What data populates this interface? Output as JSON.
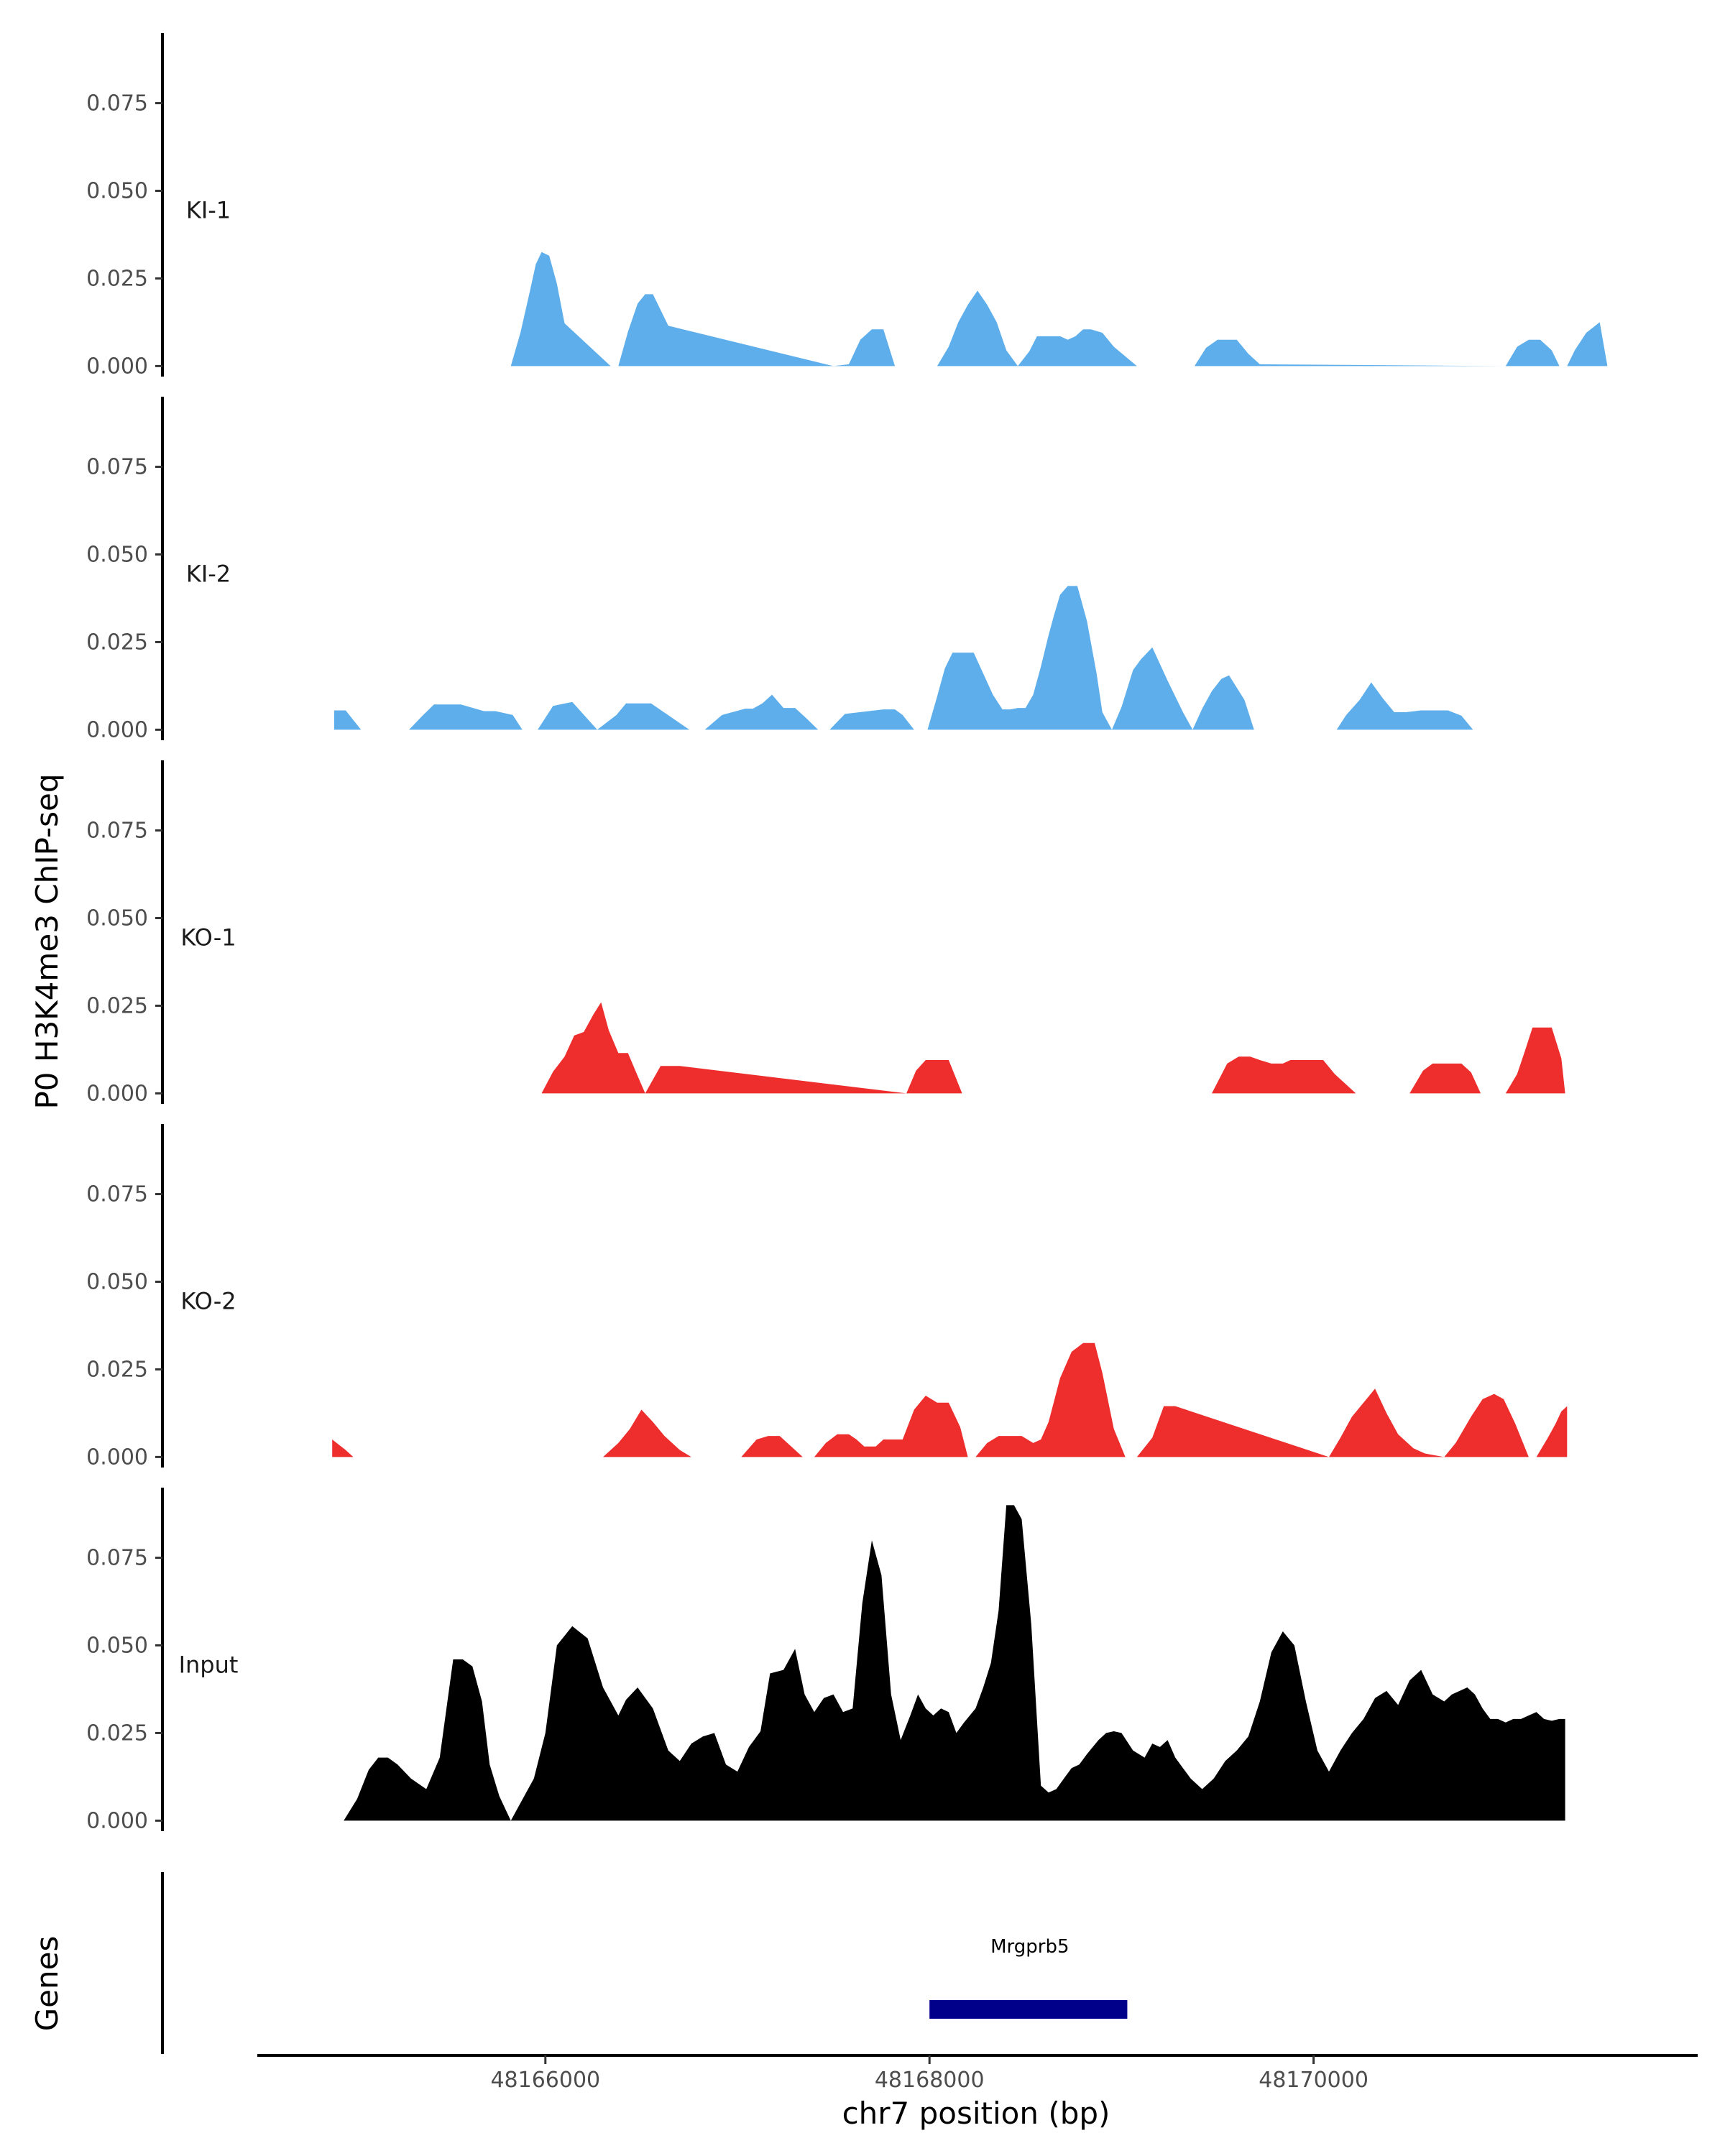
{
  "chart_data": {
    "type": "area",
    "ylabel": "P0 H3K4me3 ChIP-seq",
    "xlabel": "chr7 position (bp)",
    "xlim": [
      48164500,
      48172000
    ],
    "ylim": [
      -0.003,
      0.095
    ],
    "yticks": [
      0.0,
      0.025,
      0.05,
      0.075
    ],
    "ytick_labels": [
      "0.000",
      "0.025",
      "0.050",
      "0.075"
    ],
    "xticks": [
      48166000,
      48168000,
      48170000
    ],
    "xtick_labels": [
      "48166000",
      "48168000",
      "48170000"
    ],
    "colors": {
      "KI": "#5daeeb",
      "KO": "#ee2d2d",
      "Input": "#000000",
      "gene": "#00008b"
    },
    "tracks": [
      {
        "name": "KI-1",
        "color": "#5daeeb",
        "x": [
          48165820,
          48165870,
          48165920,
          48165950,
          48165980,
          48166020,
          48166060,
          48166100,
          48166340,
          48166380,
          48166430,
          48166480,
          48166520,
          48166560,
          48166640,
          48167500,
          48167580,
          48167640,
          48167700,
          48167760,
          48167820,
          48168040,
          48168100,
          48168150,
          48168200,
          48168250,
          48168300,
          48168350,
          48168400,
          48168460,
          48168520,
          48168560,
          48168620,
          48168680,
          48168720,
          48168760,
          48168800,
          48168840,
          48168900,
          48168960,
          48169080,
          48169380,
          48169440,
          48169500,
          48169560,
          48169600,
          48169660,
          48169720,
          48171000,
          48171060,
          48171120,
          48171180,
          48171240,
          48171280,
          48171320,
          48171360,
          48171420,
          48171490,
          48171530
        ],
        "y": [
          0,
          0.0095,
          0.0215,
          0.029,
          0.0325,
          0.0315,
          0.0235,
          0.0122,
          0,
          0,
          0.0098,
          0.0178,
          0.0205,
          0.0205,
          0.0115,
          0,
          0.0005,
          0.0075,
          0.0105,
          0.0105,
          0,
          0,
          0.0055,
          0.0125,
          0.0175,
          0.0215,
          0.0175,
          0.0125,
          0.0045,
          0,
          0.0042,
          0.0085,
          0.0085,
          0.0085,
          0.0075,
          0.0085,
          0.0105,
          0.0105,
          0.0095,
          0.0055,
          0,
          0,
          0.0052,
          0.0075,
          0.0075,
          0.0075,
          0.0035,
          0.0005,
          0,
          0.0055,
          0.0075,
          0.0075,
          0.0045,
          0,
          0,
          0.0045,
          0.0095,
          0.0125,
          0
        ]
      },
      {
        "name": "KI-2",
        "color": "#5daeeb",
        "x": [
          48164900,
          48164900,
          48164960,
          48165040,
          48165290,
          48165360,
          48165420,
          48165500,
          48165560,
          48165680,
          48165740,
          48165830,
          48165880,
          48165960,
          48166040,
          48166140,
          48166270,
          48166370,
          48166420,
          48166550,
          48166750,
          48166830,
          48166920,
          48167040,
          48167080,
          48167130,
          48167180,
          48167240,
          48167300,
          48167360,
          48167420,
          48167480,
          48167560,
          48167760,
          48167820,
          48167860,
          48167920,
          48167990,
          48168040,
          48168080,
          48168120,
          48168160,
          48168230,
          48168280,
          48168330,
          48168380,
          48168420,
          48168460,
          48168500,
          48168540,
          48168580,
          48168620,
          48168650,
          48168680,
          48168720,
          48168770,
          48168820,
          48168870,
          48168900,
          48168950,
          48169000,
          48169060,
          48169100,
          48169160,
          48169240,
          48169320,
          48169370,
          48169420,
          48169470,
          48169520,
          48169560,
          48169640,
          48169690,
          48170120,
          48170170,
          48170240,
          48170300,
          48170360,
          48170420,
          48170480,
          48170560,
          48170620,
          48170700,
          48170770,
          48170830
        ],
        "y": [
          0,
          0.0055,
          0.0055,
          0,
          0,
          0.004,
          0.0072,
          0.0072,
          0.0072,
          0.0053,
          0.0053,
          0.0042,
          0,
          0,
          0.0068,
          0.0079,
          0,
          0.0042,
          0.0075,
          0.0075,
          0,
          0,
          0.0042,
          0.006,
          0.006,
          0.0075,
          0.01,
          0.0062,
          0.0062,
          0.0032,
          0,
          0,
          0.0045,
          0.0058,
          0.0058,
          0.0042,
          0,
          0,
          0.0095,
          0.0175,
          0.022,
          0.022,
          0.022,
          0.016,
          0.01,
          0.0058,
          0.0058,
          0.0062,
          0.0062,
          0.01,
          0.018,
          0.027,
          0.033,
          0.0385,
          0.041,
          0.041,
          0.031,
          0.016,
          0.005,
          0,
          0.0065,
          0.017,
          0.02,
          0.0235,
          0.014,
          0.005,
          0,
          0.006,
          0.011,
          0.0145,
          0.0155,
          0.0085,
          0,
          0,
          0.0042,
          0.0085,
          0.0135,
          0.009,
          0.005,
          0.005,
          0.0055,
          0.0055,
          0.0055,
          0.004,
          0
        ]
      },
      {
        "name": "KO-1",
        "color": "#ee2d2d",
        "x": [
          48165980,
          48166040,
          48166100,
          48166150,
          48166200,
          48166250,
          48166290,
          48166330,
          48166380,
          48166430,
          48166480,
          48166520,
          48166600,
          48166660,
          48166700,
          48167880,
          48167930,
          48167980,
          48168040,
          48168100,
          48168170,
          48169470,
          48169550,
          48169610,
          48169670,
          48169720,
          48169780,
          48169840,
          48169880,
          48169940,
          48170050,
          48170110,
          48170220,
          48170270,
          48170320,
          48170380,
          48170480,
          48170500,
          48170570,
          48170620,
          48170700,
          48170770,
          48170820,
          48170870,
          48170930,
          48170980,
          48171000,
          48171060,
          48171100,
          48171140,
          48171190,
          48171240,
          48171290,
          48171310
        ],
        "y": [
          0,
          0.0062,
          0.0105,
          0.0165,
          0.0175,
          0.0225,
          0.026,
          0.018,
          0.0115,
          0.0115,
          0.005,
          0,
          0.0078,
          0.0078,
          0.0078,
          0,
          0.0065,
          0.0095,
          0.0095,
          0.0095,
          0,
          0,
          0.0085,
          0.0105,
          0.0105,
          0.0095,
          0.0085,
          0.0085,
          0.0095,
          0.0095,
          0.0095,
          0.0055,
          0,
          0,
          0,
          0,
          0,
          0,
          0.0065,
          0.0085,
          0.0085,
          0.0085,
          0.006,
          0,
          0,
          0,
          0,
          0.0055,
          0.012,
          0.0188,
          0.0188,
          0.0188,
          0.01,
          0
        ]
      },
      {
        "name": "KO-2",
        "color": "#ee2d2d",
        "x": [
          48164890,
          48164960,
          48165000,
          48165000,
          48166300,
          48166380,
          48166440,
          48166500,
          48166560,
          48166620,
          48166700,
          48166760,
          48167020,
          48167100,
          48167160,
          48167220,
          48167300,
          48167340,
          48167400,
          48167460,
          48167520,
          48167580,
          48167620,
          48167660,
          48167720,
          48167760,
          48167820,
          48167860,
          48167920,
          48167980,
          48168040,
          48168100,
          48168160,
          48168200,
          48168240,
          48168300,
          48168360,
          48168420,
          48168480,
          48168540,
          48168580,
          48168620,
          48168680,
          48168740,
          48168800,
          48168860,
          48168900,
          48168960,
          48169020,
          48169080,
          48169160,
          48169220,
          48169280,
          48170080,
          48170140,
          48170200,
          48170260,
          48170320,
          48170380,
          48170440,
          48170520,
          48170580,
          48170680,
          48170740,
          48170820,
          48170880,
          48170940,
          48170990,
          48171050,
          48171120,
          48171160,
          48171220,
          48171260,
          48171290,
          48171320
        ],
        "y": [
          0.005,
          0.002,
          0,
          0,
          0,
          0.004,
          0.008,
          0.0135,
          0.01,
          0.006,
          0.002,
          0,
          0,
          0.005,
          0.006,
          0.006,
          0.002,
          0,
          0,
          0.004,
          0.0065,
          0.0065,
          0.005,
          0.003,
          0.003,
          0.005,
          0.005,
          0.005,
          0.0135,
          0.0175,
          0.0155,
          0.0155,
          0.0085,
          0,
          0,
          0.004,
          0.006,
          0.006,
          0.006,
          0.004,
          0.005,
          0.01,
          0.0225,
          0.03,
          0.0325,
          0.0325,
          0.024,
          0.008,
          0,
          0,
          0.0055,
          0.0145,
          0.0145,
          0,
          0.0055,
          0.0115,
          0.0155,
          0.0195,
          0.0125,
          0.0065,
          0.0025,
          0.001,
          0,
          0.004,
          0.0115,
          0.0165,
          0.018,
          0.0165,
          0.0095,
          0,
          0,
          0.0055,
          0.0095,
          0.013,
          0.0145
        ]
      },
      {
        "name": "Input",
        "color": "#000000",
        "x": [
          48164950,
          48165020,
          48165080,
          48165130,
          48165180,
          48165230,
          48165300,
          48165380,
          48165450,
          48165520,
          48165570,
          48165620,
          48165670,
          48165710,
          48165760,
          48165820,
          48165880,
          48165940,
          48166000,
          48166060,
          48166140,
          48166220,
          48166300,
          48166380,
          48166420,
          48166480,
          48166560,
          48166640,
          48166700,
          48166760,
          48166820,
          48166880,
          48166940,
          48167000,
          48167060,
          48167120,
          48167170,
          48167240,
          48167300,
          48167350,
          48167400,
          48167450,
          48167500,
          48167550,
          48167600,
          48167650,
          48167700,
          48167750,
          48167800,
          48167850,
          48167900,
          48167940,
          48167980,
          48168020,
          48168060,
          48168100,
          48168140,
          48168180,
          48168240,
          48168280,
          48168320,
          48168360,
          48168400,
          48168440,
          48168480,
          48168530,
          48168580,
          48168620,
          48168660,
          48168700,
          48168740,
          48168780,
          48168820,
          48168880,
          48168920,
          48168960,
          48169000,
          48169060,
          48169120,
          48169160,
          48169200,
          48169240,
          48169280,
          48169320,
          48169360,
          48169420,
          48169480,
          48169540,
          48169600,
          48169660,
          48169720,
          48169780,
          48169840,
          48169900,
          48169960,
          48170020,
          48170080,
          48170140,
          48170200,
          48170260,
          48170320,
          48170380,
          48170440,
          48170500,
          48170560,
          48170620,
          48170680,
          48170720,
          48170760,
          48170800,
          48170840,
          48170880,
          48170920,
          48170960,
          48171000,
          48171040,
          48171080,
          48171120,
          48171160,
          48171200,
          48171240,
          48171280,
          48171310
        ],
        "y": [
          0,
          0.0062,
          0.0145,
          0.018,
          0.018,
          0.016,
          0.012,
          0.009,
          0.018,
          0.046,
          0.046,
          0.044,
          0.034,
          0.016,
          0.007,
          0,
          0.006,
          0.012,
          0.025,
          0.05,
          0.0555,
          0.052,
          0.038,
          0.03,
          0.0345,
          0.038,
          0.032,
          0.02,
          0.017,
          0.022,
          0.024,
          0.025,
          0.016,
          0.014,
          0.021,
          0.0255,
          0.042,
          0.043,
          0.049,
          0.036,
          0.031,
          0.035,
          0.036,
          0.031,
          0.032,
          0.062,
          0.08,
          0.07,
          0.036,
          0.023,
          0.03,
          0.036,
          0.032,
          0.03,
          0.032,
          0.031,
          0.025,
          0.028,
          0.032,
          0.038,
          0.045,
          0.06,
          0.09,
          0.09,
          0.086,
          0.056,
          0.01,
          0.008,
          0.009,
          0.012,
          0.015,
          0.016,
          0.019,
          0.023,
          0.025,
          0.0255,
          0.025,
          0.02,
          0.018,
          0.022,
          0.021,
          0.023,
          0.018,
          0.015,
          0.012,
          0.009,
          0.012,
          0.017,
          0.02,
          0.024,
          0.034,
          0.048,
          0.054,
          0.05,
          0.034,
          0.02,
          0.014,
          0.02,
          0.025,
          0.029,
          0.035,
          0.037,
          0.033,
          0.04,
          0.043,
          0.036,
          0.034,
          0.036,
          0.037,
          0.038,
          0.036,
          0.032,
          0.029,
          0.029,
          0.028,
          0.029,
          0.029,
          0.03,
          0.031,
          0.029,
          0.0285,
          0.029,
          0.029
        ]
      }
    ],
    "genes": {
      "ylabel": "Genes",
      "items": [
        {
          "name": "Mrgprb5",
          "start": 48168000,
          "end": 48169030,
          "color": "#00008b"
        }
      ]
    }
  }
}
